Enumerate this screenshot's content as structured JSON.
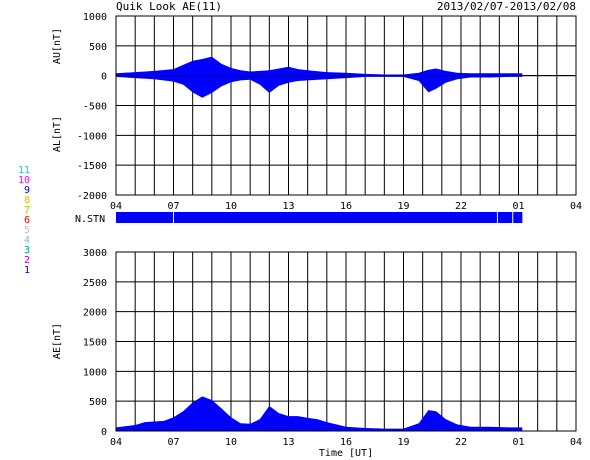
{
  "header": {
    "title": "Quik Look AE(11)",
    "date_range": "2013/02/07-2013/02/08"
  },
  "station_count_label": "N.STN",
  "station_legend": [
    {
      "label": "11",
      "color": "#00d8d8"
    },
    {
      "label": "10",
      "color": "#ff00ff"
    },
    {
      "label": "9",
      "color": "#0000ff"
    },
    {
      "label": "8",
      "color": "#ffb000"
    },
    {
      "label": "7",
      "color": "#a0d000"
    },
    {
      "label": "6",
      "color": "#ff0000"
    },
    {
      "label": "5",
      "color": "#c0c0c0"
    },
    {
      "label": "4",
      "color": "#80c0c0"
    },
    {
      "label": "3",
      "color": "#00a0a0"
    },
    {
      "label": "2",
      "color": "#c000c0"
    },
    {
      "label": "1",
      "color": "#0000c0"
    }
  ],
  "fill_color": "#0000ff",
  "chart_data": [
    {
      "type": "area",
      "ylabel_top": "AU[nT]",
      "ylabel_bottom": "AL[nT]",
      "xlabel": "",
      "ylim": [
        -2000,
        1000
      ],
      "y_ticks": [
        "1000",
        "500",
        "0",
        "-500",
        "-1000",
        "-1500",
        "-2000"
      ],
      "x_tick_labels": [
        "04",
        "07",
        "10",
        "13",
        "16",
        "19",
        "22",
        "01",
        "04"
      ],
      "xlim_hours": [
        4,
        28
      ],
      "grid": true,
      "series": [
        {
          "values_x": [
            4,
            5,
            6,
            7,
            7.5,
            8,
            8.5,
            9,
            9.5,
            10,
            10.5,
            11,
            11.5,
            12,
            12.5,
            13,
            13.5,
            14,
            15,
            16,
            17,
            18,
            19,
            19.8,
            20.3,
            20.7,
            21.2,
            21.8,
            22.5,
            23.5,
            24.5,
            25.2
          ],
          "au": [
            40,
            60,
            80,
            110,
            180,
            250,
            280,
            320,
            200,
            130,
            90,
            70,
            80,
            90,
            120,
            150,
            110,
            90,
            60,
            50,
            30,
            20,
            20,
            50,
            100,
            120,
            80,
            50,
            40,
            40,
            40,
            40
          ],
          "al": [
            -20,
            -40,
            -60,
            -100,
            -150,
            -280,
            -370,
            -290,
            -180,
            -110,
            -80,
            -70,
            -150,
            -290,
            -170,
            -120,
            -90,
            -80,
            -60,
            -40,
            -20,
            -20,
            -20,
            -90,
            -280,
            -220,
            -120,
            -60,
            -30,
            -30,
            -20,
            -20
          ]
        }
      ]
    },
    {
      "type": "area",
      "ylabel": "AE[nT]",
      "xlabel": "Time [UT]",
      "ylim": [
        0,
        3000
      ],
      "y_ticks": [
        "3000",
        "2500",
        "2000",
        "1500",
        "1000",
        "500",
        "0"
      ],
      "x_tick_labels": [
        "04",
        "07",
        "10",
        "13",
        "16",
        "19",
        "22",
        "01",
        "04"
      ],
      "xlim_hours": [
        4,
        28
      ],
      "grid": true,
      "x": [
        4,
        5,
        5.5,
        6,
        6.5,
        7,
        7.5,
        8,
        8.5,
        9,
        9.5,
        10,
        10.5,
        11,
        11.5,
        12,
        12.5,
        13,
        13.5,
        14,
        14.5,
        15,
        15.5,
        16,
        17,
        18,
        19,
        19.8,
        20.3,
        20.7,
        21.2,
        21.8,
        22.5,
        23.5,
        24.5,
        25.2
      ],
      "values": [
        60,
        100,
        150,
        160,
        170,
        230,
        330,
        480,
        580,
        520,
        380,
        230,
        130,
        120,
        200,
        420,
        300,
        250,
        250,
        220,
        200,
        150,
        110,
        70,
        50,
        40,
        40,
        130,
        350,
        330,
        200,
        110,
        70,
        70,
        60,
        60
      ]
    }
  ]
}
